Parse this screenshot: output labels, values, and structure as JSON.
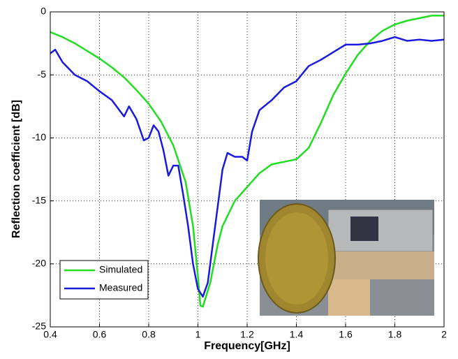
{
  "chart_data": {
    "type": "line",
    "xlabel": "Frequency[GHz]",
    "ylabel": "Reflection coefficient [dB]",
    "xlim": [
      0.4,
      2
    ],
    "ylim": [
      -25,
      0
    ],
    "xticks": [
      0.4,
      0.6,
      0.8,
      1,
      1.2,
      1.4,
      1.6,
      1.8,
      2
    ],
    "yticks": [
      -25,
      -20,
      -15,
      -10,
      -5,
      0
    ],
    "grid": true,
    "legend": "lower left",
    "series": [
      {
        "name": "Simulated",
        "color": "#22dd22",
        "x": [
          0.4,
          0.45,
          0.5,
          0.55,
          0.6,
          0.65,
          0.7,
          0.75,
          0.8,
          0.85,
          0.9,
          0.95,
          0.98,
          1.0,
          1.01,
          1.02,
          1.05,
          1.08,
          1.1,
          1.15,
          1.2,
          1.25,
          1.3,
          1.35,
          1.4,
          1.45,
          1.5,
          1.55,
          1.6,
          1.65,
          1.7,
          1.75,
          1.8,
          1.85,
          1.9,
          1.95,
          2.0
        ],
        "values": [
          -1.6,
          -2.0,
          -2.5,
          -3.1,
          -3.7,
          -4.4,
          -5.2,
          -6.2,
          -7.3,
          -8.7,
          -10.6,
          -13.5,
          -17,
          -21,
          -23.3,
          -23.4,
          -21.5,
          -18.5,
          -17,
          -15,
          -13.9,
          -12.8,
          -12.1,
          -11.9,
          -11.7,
          -10.8,
          -8.8,
          -6.6,
          -4.9,
          -3.4,
          -2.3,
          -1.5,
          -1.0,
          -0.7,
          -0.5,
          -0.3,
          -0.3
        ]
      },
      {
        "name": "Measured",
        "color": "#1a1adf",
        "x": [
          0.4,
          0.42,
          0.45,
          0.5,
          0.55,
          0.6,
          0.65,
          0.7,
          0.72,
          0.75,
          0.78,
          0.8,
          0.82,
          0.84,
          0.86,
          0.88,
          0.9,
          0.92,
          0.94,
          0.96,
          0.98,
          1.0,
          1.02,
          1.04,
          1.06,
          1.08,
          1.1,
          1.12,
          1.15,
          1.18,
          1.2,
          1.22,
          1.25,
          1.3,
          1.35,
          1.4,
          1.45,
          1.5,
          1.55,
          1.6,
          1.65,
          1.7,
          1.75,
          1.8,
          1.85,
          1.9,
          1.95,
          2.0
        ],
        "values": [
          -3.3,
          -3.0,
          -4.0,
          -5.0,
          -5.5,
          -6.3,
          -7.0,
          -8.3,
          -7.5,
          -8.5,
          -10.2,
          -10.0,
          -9.0,
          -9.5,
          -11.0,
          -13.0,
          -12.2,
          -12.2,
          -14.5,
          -17,
          -20,
          -22.0,
          -22.6,
          -21.5,
          -18.5,
          -15.5,
          -12.5,
          -11.2,
          -11.5,
          -11.5,
          -11.8,
          -9.5,
          -7.8,
          -7.0,
          -6.0,
          -5.5,
          -4.3,
          -3.8,
          -3.2,
          -2.6,
          -2.6,
          -2.5,
          -2.3,
          -2.0,
          -2.3,
          -2.2,
          -2.3,
          -2.2
        ]
      }
    ]
  }
}
